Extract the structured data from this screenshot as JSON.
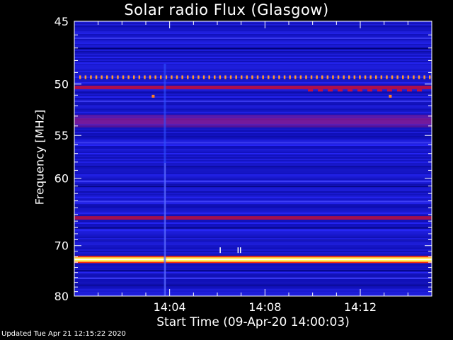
{
  "chart_data": {
    "type": "heatmap",
    "title": "Solar radio Flux (Glasgow)",
    "xlabel": "Start Time (09-Apr-20 14:00:03)",
    "ylabel": "Frequency [MHz]",
    "x_ticks": [
      "14:04",
      "14:08",
      "14:12"
    ],
    "x_tick_minutes": [
      4,
      8,
      12
    ],
    "x_range_minutes": [
      0,
      15
    ],
    "y_ticks": [
      45,
      50,
      55,
      60,
      70,
      80
    ],
    "y_range": [
      45,
      80
    ],
    "y_scale": "reciprocal",
    "background_level_color": "#1a1ad0",
    "bands": [
      {
        "freq": 49.4,
        "color": "#ff9a30",
        "kind": "dashed"
      },
      {
        "freq": 50.3,
        "color": "#c01040",
        "kind": "line"
      },
      {
        "freq": 53.5,
        "color": "#8a1a8a",
        "kind": "wide"
      },
      {
        "freq": 65.5,
        "color": "#b01040",
        "kind": "line"
      },
      {
        "freq": 72.5,
        "color": "#ffff60",
        "kind": "intense"
      }
    ],
    "features": [
      {
        "type": "vertical_streak",
        "time_minutes": 3.8,
        "color": "#3050ff"
      }
    ]
  },
  "footer": "Updated Tue Apr 21 12:15:22 2020"
}
